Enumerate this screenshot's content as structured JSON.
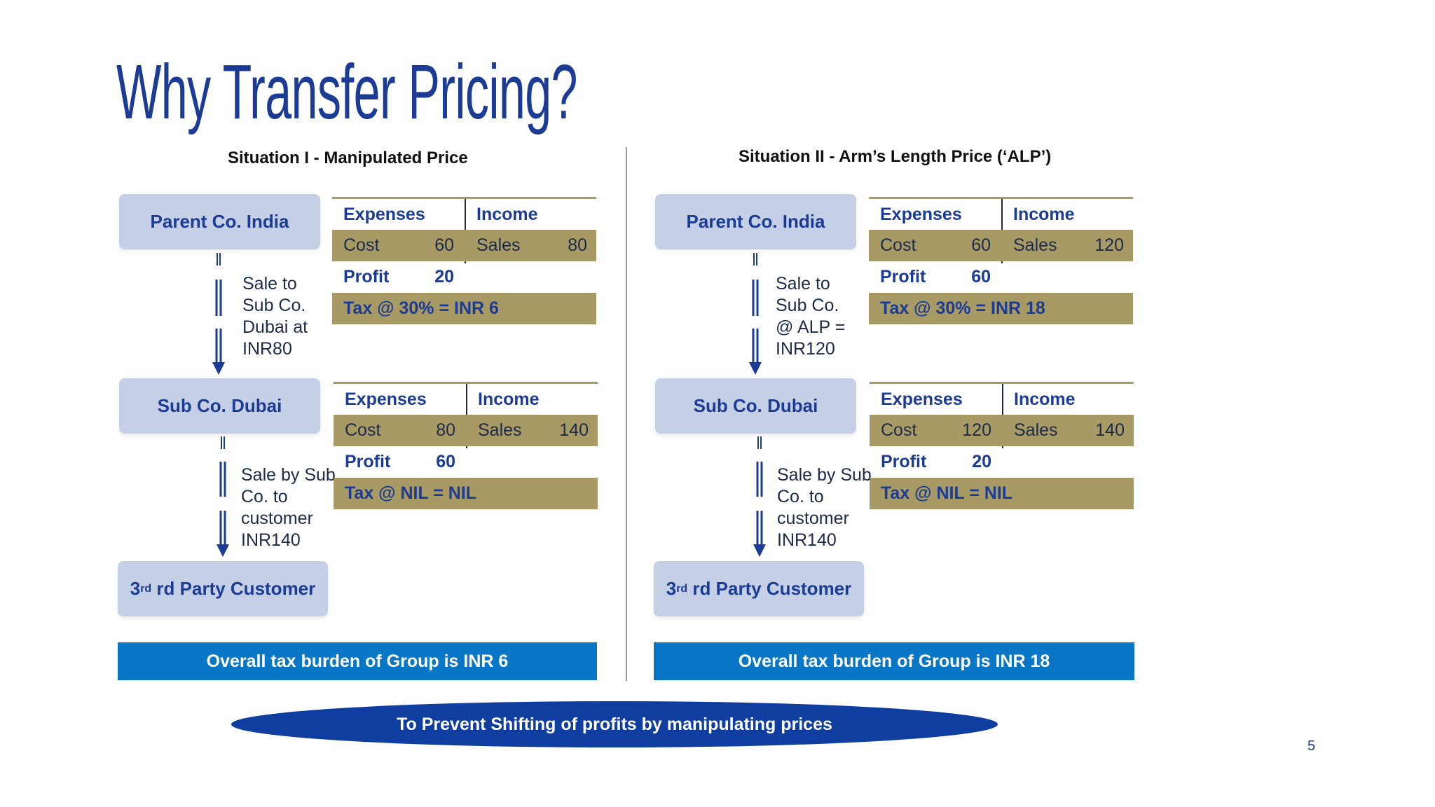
{
  "title": "Why Transfer Pricing?",
  "situation1": {
    "heading": "Situation I - Manipulated Price",
    "parent_box": "Parent Co. India",
    "sub_box": "Sub Co. Dubai",
    "customer_box": "rd Party Customer",
    "customer_prefix": "3",
    "flow1": [
      "Sale to",
      "Sub Co.",
      "Dubai at",
      "INR80"
    ],
    "flow2": [
      "Sale by Sub",
      "Co. to",
      "customer",
      "INR140"
    ],
    "ledger_parent": {
      "exp": "Expenses",
      "inc": "Income",
      "cost_label": "Cost",
      "cost": "60",
      "sales_label": "Sales",
      "sales": "80",
      "profit_label": "Profit",
      "profit": "20",
      "tax": "Tax @ 30% = INR 6"
    },
    "ledger_sub": {
      "exp": "Expenses",
      "inc": "Income",
      "cost_label": "Cost",
      "cost": "80",
      "sales_label": "Sales",
      "sales": "140",
      "profit_label": "Profit",
      "profit": "60",
      "tax": "Tax @ NIL = NIL"
    },
    "burden": "Overall tax burden of Group is INR 6"
  },
  "situation2": {
    "heading": "Situation II - Arm’s Length Price (‘ALP’)",
    "parent_box": "Parent Co. India",
    "sub_box": "Sub Co. Dubai",
    "customer_box": "rd Party Customer",
    "customer_prefix": "3",
    "flow1": [
      "Sale to",
      "Sub Co.",
      "@ ALP =",
      "INR120"
    ],
    "flow2": [
      "Sale by Sub",
      "Co. to",
      "customer",
      "INR140"
    ],
    "ledger_parent": {
      "exp": "Expenses",
      "inc": "Income",
      "cost_label": "Cost",
      "cost": "60",
      "sales_label": "Sales",
      "sales": "120",
      "profit_label": "Profit",
      "profit": "60",
      "tax": "Tax @ 30% = INR 18"
    },
    "ledger_sub": {
      "exp": "Expenses",
      "inc": "Income",
      "cost_label": "Cost",
      "cost": "120",
      "sales_label": "Sales",
      "sales": "140",
      "profit_label": "Profit",
      "profit": "20",
      "tax": "Tax @ NIL = NIL"
    },
    "burden": "Overall tax burden of Group is INR 18"
  },
  "banner": "To Prevent Shifting of profits by manipulating prices",
  "page_number": "5",
  "colors": {
    "title": "#1b3b94",
    "box": "#c5d0e6",
    "ledger_shade": "#a79a64",
    "burden": "#0a76c6",
    "banner": "#0f3ea0"
  }
}
